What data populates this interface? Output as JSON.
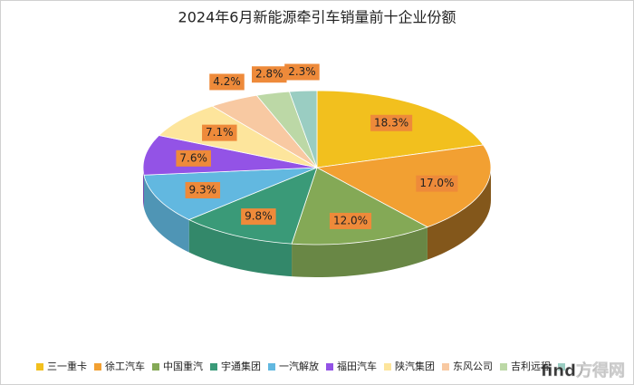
{
  "chart_data": {
    "type": "pie3d",
    "title": "2024年6月新能源牵引车销量前十企业份额",
    "categories": [
      "三一重卡",
      "徐工汽车",
      "中国重汽",
      "宇通集团",
      "一汽解放",
      "福田汽车",
      "陕汽集团",
      "东风公司",
      "吉利远程",
      null
    ],
    "values": [
      18.3,
      17.0,
      12.0,
      9.8,
      9.3,
      7.6,
      7.1,
      4.2,
      2.8,
      2.3
    ],
    "value_labels": [
      "18.3%",
      "17.0%",
      "12.0%",
      "9.8%",
      "9.3%",
      "7.6%",
      "7.1%",
      "4.2%",
      "2.8%",
      "2.3%"
    ],
    "colors": [
      "#f2c01e",
      "#f2a032",
      "#84a956",
      "#3a9a78",
      "#62b8e0",
      "#9353e6",
      "#fde59c",
      "#f8c9a2",
      "#bcd8a6",
      "#9acdc2"
    ],
    "legend": "bottom",
    "watermark": "find方得网"
  }
}
